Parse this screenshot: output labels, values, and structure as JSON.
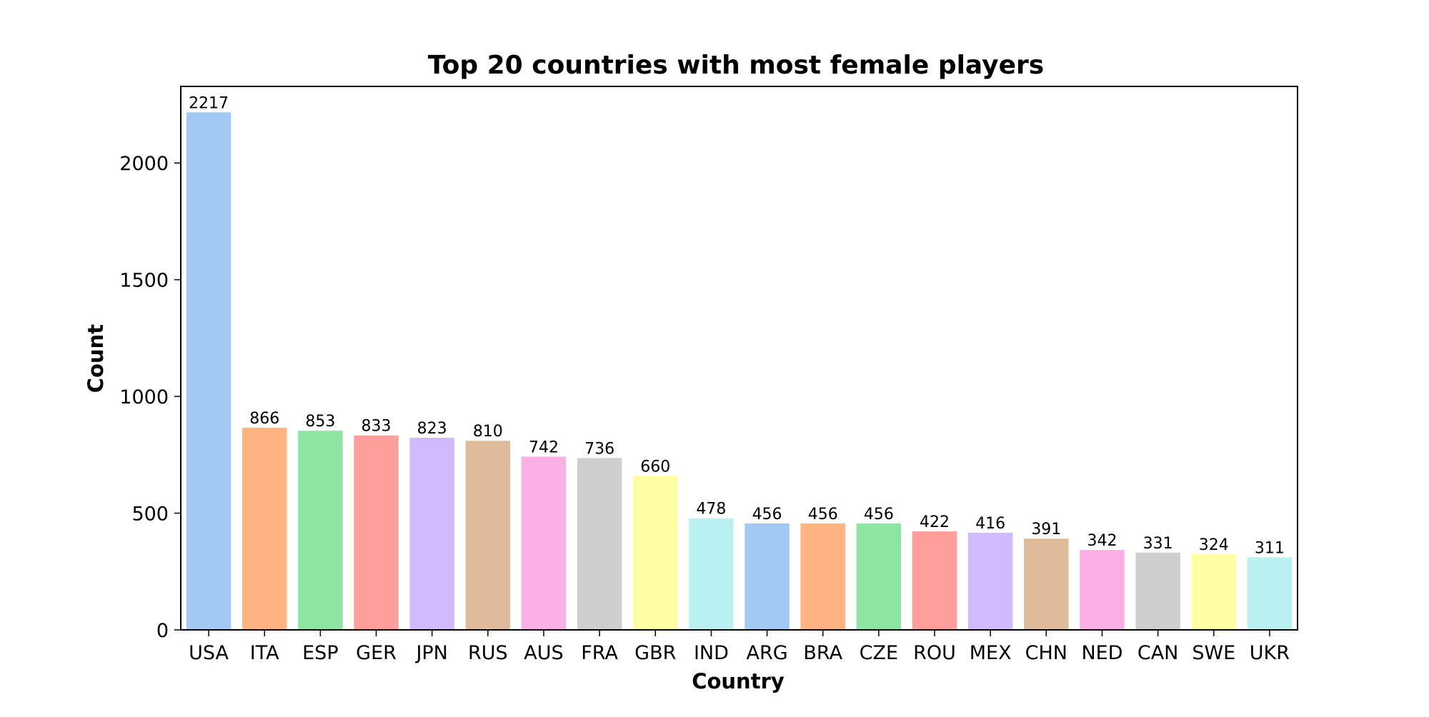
{
  "chart_data": {
    "type": "bar",
    "title": "Top 20 countries with most female players",
    "xlabel": "Country",
    "ylabel": "Count",
    "categories": [
      "USA",
      "ITA",
      "ESP",
      "GER",
      "JPN",
      "RUS",
      "AUS",
      "FRA",
      "GBR",
      "IND",
      "ARG",
      "BRA",
      "CZE",
      "ROU",
      "MEX",
      "CHN",
      "NED",
      "CAN",
      "SWE",
      "UKR"
    ],
    "values": [
      2217,
      866,
      853,
      833,
      823,
      810,
      742,
      736,
      660,
      478,
      456,
      456,
      456,
      422,
      416,
      391,
      342,
      331,
      324,
      311
    ],
    "data_labels": [
      "2217",
      "866",
      "853",
      "833",
      "823",
      "810",
      "742",
      "736",
      "660",
      "478",
      "456",
      "456",
      "456",
      "422",
      "416",
      "391",
      "342",
      "331",
      "324",
      "311"
    ],
    "ylim": [
      0,
      2328
    ],
    "yticks": [
      0,
      500,
      1000,
      1500,
      2000
    ],
    "ytick_labels": [
      "0",
      "500",
      "1000",
      "1500",
      "2000"
    ],
    "grid": false,
    "legend": "none",
    "colors": [
      "#a1c9f4",
      "#ffb482",
      "#8de5a1",
      "#ff9f9b",
      "#d0bbff",
      "#debb9b",
      "#fab0e4",
      "#cfcfcf",
      "#fffea3",
      "#b9f2f0"
    ]
  }
}
